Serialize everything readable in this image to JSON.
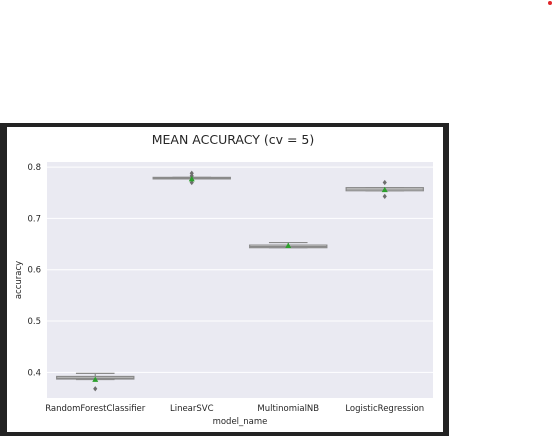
{
  "page": {
    "accent_dot_color": "#e0262b",
    "frame_color": "#232323"
  },
  "chart_data": {
    "type": "box",
    "title": "MEAN ACCURACY (cv = 5)",
    "xlabel": "model_name",
    "ylabel": "accuracy",
    "ylim": [
      0.35,
      0.81
    ],
    "yticks": [
      0.4,
      0.5,
      0.6,
      0.7,
      0.8
    ],
    "grid": true,
    "background": "#eaeaf2",
    "box_color": "#8a8a8a",
    "mean_marker_color": "#2ca02c",
    "categories": [
      "RandomForestClassifier",
      "LinearSVC",
      "MultinomialNB",
      "LogisticRegression"
    ],
    "boxes": [
      {
        "q1": 0.387,
        "median": 0.389,
        "q3": 0.392,
        "whisker_low": 0.386,
        "whisker_high": 0.398,
        "mean": 0.386,
        "outliers": [
          0.368
        ]
      },
      {
        "q1": 0.778,
        "median": 0.779,
        "q3": 0.78,
        "whisker_low": 0.778,
        "whisker_high": 0.78,
        "mean": 0.777,
        "outliers": [
          0.788,
          0.783,
          0.77
        ]
      },
      {
        "q1": 0.643,
        "median": 0.645,
        "q3": 0.648,
        "whisker_low": 0.643,
        "whisker_high": 0.653,
        "mean": 0.647,
        "outliers": []
      },
      {
        "q1": 0.754,
        "median": 0.757,
        "q3": 0.76,
        "whisker_low": 0.754,
        "whisker_high": 0.76,
        "mean": 0.756,
        "outliers": [
          0.77,
          0.743
        ]
      }
    ]
  }
}
